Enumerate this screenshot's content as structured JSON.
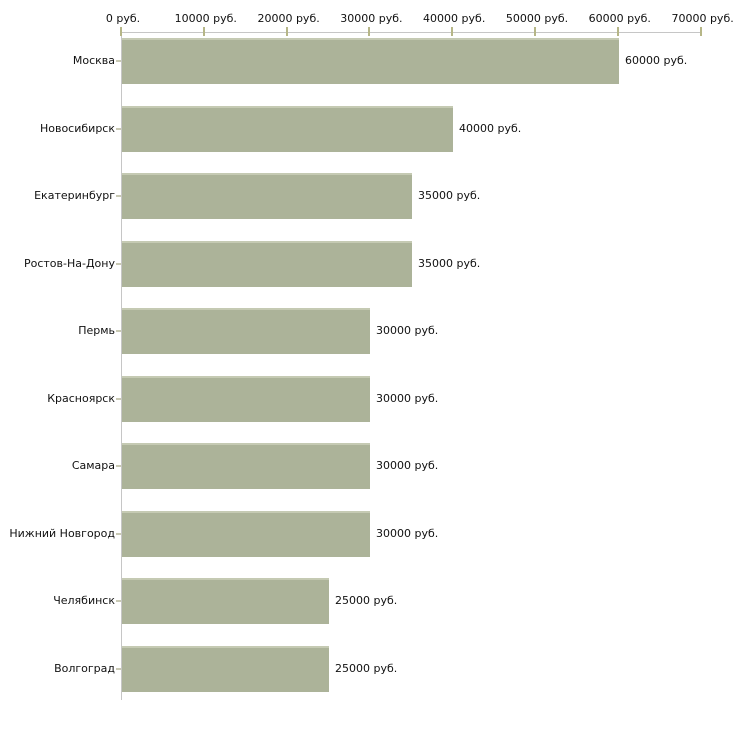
{
  "chart_data": {
    "type": "bar",
    "orientation": "horizontal",
    "title": "",
    "xlabel": "",
    "ylabel": "",
    "unit": "руб.",
    "grid": false,
    "legend": false,
    "xlim": [
      0,
      70000
    ],
    "x_ticks": [
      0,
      10000,
      20000,
      30000,
      40000,
      50000,
      60000,
      70000
    ],
    "x_tick_labels": [
      "0 руб.",
      "10000 руб.",
      "20000 руб.",
      "30000 руб.",
      "40000 руб.",
      "50000 руб.",
      "60000 руб.",
      "70000 руб."
    ],
    "categories": [
      "Москва",
      "Новосибирск",
      "Екатеринбург",
      "Ростов-На-Дону",
      "Пермь",
      "Красноярск",
      "Самара",
      "Нижний Новгород",
      "Челябинск",
      "Волгоград"
    ],
    "values": [
      60000,
      40000,
      35000,
      35000,
      30000,
      30000,
      30000,
      30000,
      25000,
      25000
    ],
    "value_labels": [
      "60000 руб.",
      "40000 руб.",
      "35000 руб.",
      "35000 руб.",
      "30000 руб.",
      "30000 руб.",
      "30000 руб.",
      "30000 руб.",
      "25000 руб.",
      "25000 руб."
    ],
    "colors": {
      "bar": "#acb399",
      "bar_top": "#c5cab3",
      "axis": "#c6c6c6",
      "tick": "#b6b687",
      "category_tick": "#c9c9b4",
      "text": "#111111",
      "background": "#ffffff"
    }
  }
}
